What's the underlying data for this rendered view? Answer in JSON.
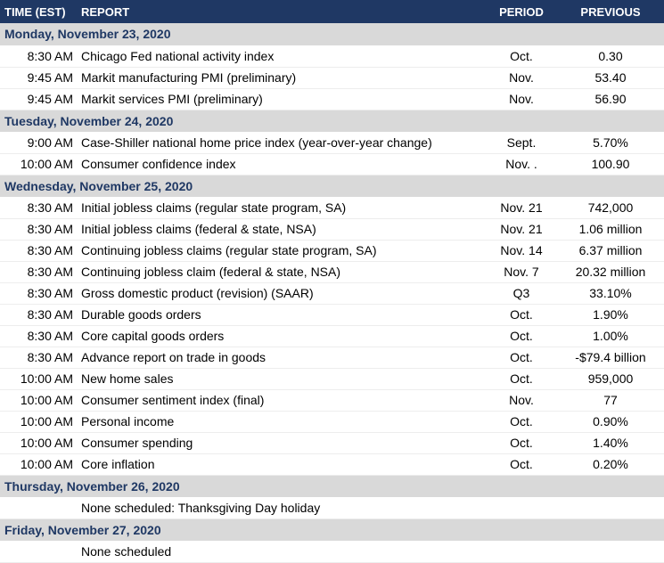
{
  "table": {
    "columns": [
      "TIME (EST)",
      "REPORT",
      "PERIOD",
      "PREVIOUS"
    ],
    "sections": [
      {
        "date": "Monday, November 23, 2020",
        "rows": [
          {
            "time": "8:30 AM",
            "report": "Chicago Fed national activity index",
            "period": "Oct.",
            "previous": "0.30"
          },
          {
            "time": "9:45 AM",
            "report": "Markit manufacturing PMI (preliminary)",
            "period": "Nov.",
            "previous": "53.40"
          },
          {
            "time": "9:45 AM",
            "report": "Markit services PMI (preliminary)",
            "period": "Nov.",
            "previous": "56.90"
          }
        ]
      },
      {
        "date": "Tuesday, November 24, 2020",
        "rows": [
          {
            "time": "9:00 AM",
            "report": "Case-Shiller national home price index (year-over-year change)",
            "period": "Sept.",
            "previous": "5.70%"
          },
          {
            "time": "10:00 AM",
            "report": "Consumer confidence index",
            "period": "Nov. .",
            "previous": "100.90"
          }
        ]
      },
      {
        "date": "Wednesday, November 25, 2020",
        "rows": [
          {
            "time": "8:30 AM",
            "report": "Initial jobless claims (regular state program, SA)",
            "period": "Nov. 21",
            "previous": "742,000"
          },
          {
            "time": "8:30 AM",
            "report": "Initial jobless claims (federal & state, NSA)",
            "period": "Nov. 21",
            "previous": "1.06 million"
          },
          {
            "time": "8:30 AM",
            "report": "Continuing jobless claims (regular state program, SA)",
            "period": "Nov. 14",
            "previous": "6.37 million"
          },
          {
            "time": "8:30 AM",
            "report": "Continuing jobless claim (federal & state, NSA)",
            "period": "Nov. 7",
            "previous": "20.32 million"
          },
          {
            "time": "8:30 AM",
            "report": "Gross domestic product (revision) (SAAR)",
            "period": "Q3",
            "previous": "33.10%"
          },
          {
            "time": "8:30 AM",
            "report": "Durable goods orders",
            "period": "Oct.",
            "previous": "1.90%"
          },
          {
            "time": "8:30 AM",
            "report": "Core capital goods orders",
            "period": "Oct.",
            "previous": "1.00%"
          },
          {
            "time": "8:30 AM",
            "report": "Advance report on trade in goods",
            "period": "Oct.",
            "previous": "-$79.4 billion"
          },
          {
            "time": "10:00 AM",
            "report": "New home sales",
            "period": "Oct.",
            "previous": "959,000"
          },
          {
            "time": "10:00 AM",
            "report": "Consumer sentiment index (final)",
            "period": "Nov.",
            "previous": "77"
          },
          {
            "time": "10:00 AM",
            "report": "Personal income",
            "period": "Oct.",
            "previous": "0.90%"
          },
          {
            "time": "10:00 AM",
            "report": "Consumer spending",
            "period": "Oct.",
            "previous": "1.40%"
          },
          {
            "time": "10:00 AM",
            "report": "Core inflation",
            "period": "Oct.",
            "previous": "0.20%"
          }
        ]
      },
      {
        "date": "Thursday, November 26, 2020",
        "rows": [
          {
            "time": "",
            "report": "None scheduled: Thanksgiving Day holiday",
            "period": "",
            "previous": ""
          }
        ]
      },
      {
        "date": "Friday, November 27, 2020",
        "rows": [
          {
            "time": "",
            "report": "None scheduled",
            "period": "",
            "previous": ""
          }
        ]
      }
    ],
    "colors": {
      "header_bg": "#1F3864",
      "header_text": "#FFFFFF",
      "section_bg": "#D9D9D9",
      "section_text": "#1F3864",
      "row_border": "#EDEDED"
    }
  }
}
